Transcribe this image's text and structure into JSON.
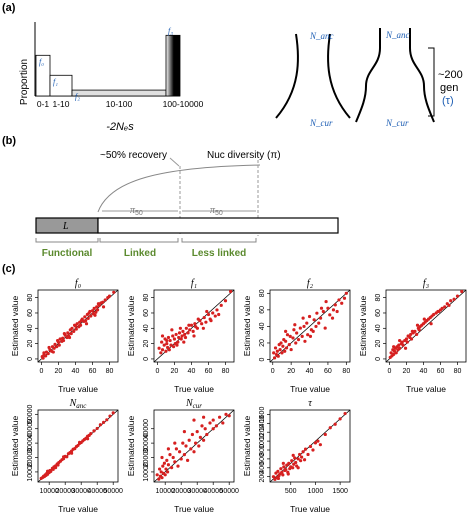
{
  "panel_a": {
    "label": "(a)",
    "ylabel": "Proportion",
    "xlabel": "-2Nₑs",
    "categories": [
      "0-1",
      "1-10",
      "10-100",
      "100-10000"
    ],
    "bar_labels": [
      "f₀",
      "f₁",
      "f₂",
      "f₃"
    ],
    "bar_values": [
      0.55,
      0.28,
      0.08,
      0.82
    ],
    "demography": {
      "n_anc": "N_anc",
      "n_cur": "N_cur",
      "gen_label": "~200",
      "gen_word": "gen",
      "tau": "(τ)"
    }
  },
  "panel_b": {
    "label": "(b)",
    "recovery": "~50% recovery",
    "nuc_diversity": "Nuc diversity (π)",
    "pi_50": "π",
    "pi_50_sub": "50",
    "element": "L",
    "regions": [
      "Functional",
      "Linked",
      "Less linked"
    ]
  },
  "panel_c": {
    "label": "(c)",
    "xlabel": "True value",
    "ylabel": "Estimated value"
  },
  "chart_data": [
    {
      "type": "scatter",
      "title": "f₀",
      "xlabel": "True value",
      "ylabel": "Estimated value",
      "xlim": [
        -4,
        90
      ],
      "ylim": [
        -4,
        90
      ],
      "xticks": [
        0,
        20,
        40,
        60,
        80
      ],
      "yticks": [
        0,
        20,
        40,
        60,
        80
      ],
      "color": "#d62020",
      "identity_line": true,
      "x": [
        1,
        2,
        3,
        5,
        6,
        8,
        10,
        12,
        13,
        15,
        16,
        18,
        20,
        21,
        22,
        24,
        25,
        26,
        28,
        30,
        31,
        32,
        34,
        35,
        36,
        38,
        40,
        41,
        42,
        44,
        45,
        46,
        48,
        50,
        51,
        52,
        54,
        55,
        56,
        58,
        60,
        61,
        62,
        64,
        65,
        66,
        68,
        70,
        72,
        75,
        78,
        80,
        85,
        3,
        9,
        14,
        19,
        27,
        33,
        39,
        47,
        53,
        57,
        63,
        67,
        73
      ],
      "y": [
        3,
        1,
        6,
        4,
        9,
        7,
        12,
        10,
        16,
        14,
        19,
        16,
        22,
        18,
        26,
        23,
        27,
        24,
        31,
        28,
        34,
        30,
        38,
        33,
        40,
        36,
        43,
        39,
        46,
        42,
        48,
        44,
        52,
        49,
        55,
        50,
        58,
        53,
        60,
        56,
        63,
        59,
        66,
        61,
        68,
        64,
        70,
        73,
        74,
        77,
        80,
        82,
        87,
        8,
        15,
        9,
        24,
        33,
        28,
        44,
        50,
        46,
        62,
        57,
        72,
        68
      ]
    },
    {
      "type": "scatter",
      "title": "f₁",
      "xlabel": "True value",
      "ylabel": "Estimated value",
      "xlim": [
        -4,
        90
      ],
      "ylim": [
        -4,
        90
      ],
      "xticks": [
        0,
        20,
        40,
        60,
        80
      ],
      "yticks": [
        0,
        20,
        40,
        60,
        80
      ],
      "color": "#d62020",
      "identity_line": true,
      "x": [
        2,
        4,
        5,
        6,
        8,
        9,
        10,
        11,
        12,
        13,
        14,
        15,
        16,
        18,
        19,
        20,
        21,
        22,
        24,
        25,
        26,
        28,
        29,
        30,
        32,
        33,
        34,
        36,
        38,
        40,
        42,
        44,
        45,
        47,
        50,
        52,
        55,
        57,
        60,
        62,
        65,
        68,
        70,
        72,
        75,
        80,
        86,
        6,
        11,
        17,
        23,
        27,
        31,
        37,
        43,
        48,
        54,
        58,
        63
      ],
      "y": [
        14,
        8,
        22,
        12,
        18,
        26,
        10,
        20,
        15,
        28,
        12,
        24,
        18,
        30,
        16,
        26,
        20,
        32,
        22,
        28,
        34,
        26,
        30,
        36,
        32,
        28,
        40,
        34,
        38,
        44,
        36,
        46,
        42,
        40,
        50,
        46,
        54,
        48,
        58,
        52,
        60,
        56,
        64,
        58,
        70,
        76,
        88,
        30,
        24,
        38,
        18,
        40,
        22,
        44,
        30,
        52,
        40,
        62,
        50
      ]
    },
    {
      "type": "scatter",
      "title": "f₂",
      "xlabel": "True value",
      "ylabel": "Estimated value",
      "xlim": [
        -3,
        84
      ],
      "ylim": [
        -3,
        84
      ],
      "xticks": [
        0,
        20,
        40,
        60,
        80
      ],
      "yticks": [
        0,
        20,
        40,
        60,
        80
      ],
      "color": "#d62020",
      "identity_line": true,
      "x": [
        1,
        2,
        3,
        4,
        5,
        6,
        7,
        8,
        9,
        10,
        11,
        12,
        13,
        14,
        15,
        16,
        18,
        19,
        20,
        22,
        23,
        25,
        26,
        28,
        30,
        32,
        34,
        35,
        37,
        38,
        40,
        42,
        44,
        45,
        47,
        48,
        50,
        52,
        55,
        57,
        60,
        62,
        65,
        68,
        70,
        72,
        75,
        78,
        80,
        14,
        24,
        33,
        41,
        53,
        58,
        66
      ],
      "y": [
        8,
        2,
        14,
        6,
        10,
        4,
        18,
        12,
        20,
        8,
        16,
        24,
        10,
        22,
        14,
        30,
        18,
        28,
        12,
        26,
        36,
        20,
        32,
        24,
        38,
        28,
        40,
        22,
        44,
        30,
        52,
        36,
        34,
        48,
        40,
        56,
        44,
        50,
        58,
        38,
        62,
        54,
        50,
        66,
        58,
        72,
        68,
        74,
        80,
        34,
        42,
        50,
        28,
        62,
        70,
        60
      ]
    },
    {
      "type": "scatter",
      "title": "f₃",
      "xlabel": "True value",
      "ylabel": "Estimated value",
      "xlim": [
        -4,
        90
      ],
      "ylim": [
        -4,
        90
      ],
      "xticks": [
        0,
        20,
        40,
        60,
        80
      ],
      "yticks": [
        0,
        20,
        40,
        60,
        80
      ],
      "color": "#d62020",
      "identity_line": true,
      "x": [
        1,
        2,
        3,
        4,
        5,
        6,
        7,
        8,
        9,
        10,
        11,
        12,
        14,
        15,
        16,
        18,
        20,
        21,
        22,
        24,
        25,
        26,
        28,
        30,
        32,
        34,
        35,
        36,
        38,
        40,
        42,
        44,
        46,
        48,
        50,
        52,
        55,
        58,
        60,
        62,
        65,
        68,
        70,
        72,
        76,
        80,
        85,
        5,
        12,
        19,
        27,
        33,
        41,
        49,
        57
      ],
      "y": [
        2,
        8,
        4,
        12,
        6,
        10,
        14,
        8,
        16,
        12,
        18,
        14,
        20,
        22,
        18,
        24,
        26,
        22,
        30,
        28,
        32,
        26,
        34,
        36,
        32,
        40,
        38,
        42,
        44,
        46,
        48,
        50,
        52,
        54,
        56,
        58,
        60,
        62,
        64,
        66,
        68,
        72,
        70,
        76,
        78,
        82,
        88,
        16,
        24,
        14,
        36,
        44,
        52,
        46,
        62
      ]
    },
    {
      "type": "scatter",
      "title": "N_anc",
      "xlabel": "True value",
      "ylabel": "Estimated value",
      "xlim": [
        3000,
        53000
      ],
      "ylim": [
        3000,
        53000
      ],
      "xticks": [
        10000,
        20000,
        30000,
        40000,
        50000
      ],
      "yticks": [
        10000,
        20000,
        30000,
        40000,
        50000
      ],
      "color": "#d62020",
      "identity_line": true,
      "x": [
        5000,
        6000,
        6500,
        7000,
        7500,
        8000,
        8500,
        9000,
        9500,
        10000,
        10500,
        11000,
        12000,
        12500,
        13000,
        14000,
        15000,
        15500,
        16000,
        17000,
        18000,
        19000,
        20000,
        21000,
        22000,
        23000,
        24000,
        25000,
        26000,
        27000,
        28000,
        29000,
        30000,
        31000,
        32000,
        33000,
        34000,
        35000,
        36000,
        38000,
        40000,
        42000,
        44000,
        46000,
        48000,
        50000,
        9000,
        14000,
        19000,
        24000,
        29000,
        34000
      ],
      "y": [
        5500,
        6200,
        7000,
        6800,
        8000,
        7600,
        9000,
        8400,
        10000,
        9600,
        11000,
        10400,
        12500,
        11800,
        13500,
        14200,
        15500,
        14800,
        16500,
        17400,
        18500,
        19200,
        20800,
        20500,
        22600,
        23400,
        24500,
        25800,
        26200,
        27600,
        28400,
        29800,
        30400,
        31600,
        32500,
        33400,
        34800,
        35400,
        36600,
        38500,
        40200,
        42800,
        44400,
        46200,
        48800,
        51000,
        10500,
        13000,
        20500,
        23000,
        30500,
        33000
      ]
    },
    {
      "type": "scatter",
      "title": "N_cur",
      "xlabel": "True value",
      "ylabel": "Estimated value",
      "xlim": [
        3000,
        53000
      ],
      "ylim": [
        3000,
        53000
      ],
      "xticks": [
        10000,
        20000,
        30000,
        40000,
        50000
      ],
      "yticks": [
        10000,
        20000,
        30000,
        40000
      ],
      "color": "#d62020",
      "identity_line": true,
      "x": [
        5000,
        6000,
        6500,
        7000,
        7500,
        8000,
        8500,
        9000,
        9500,
        10000,
        10500,
        11000,
        11500,
        12000,
        13000,
        14000,
        15000,
        16000,
        17000,
        18000,
        19000,
        20000,
        21000,
        22000,
        23000,
        24000,
        25000,
        26000,
        27000,
        28000,
        29000,
        30000,
        31000,
        32000,
        33000,
        34000,
        35000,
        36000,
        38000,
        40000,
        42000,
        44000,
        46000,
        48000,
        50000,
        8000,
        12000,
        16000,
        22000,
        28000,
        34000,
        40000
      ],
      "y": [
        8000,
        5000,
        12000,
        7000,
        10000,
        6000,
        14000,
        9000,
        16000,
        8000,
        12000,
        18000,
        10000,
        15000,
        22000,
        13000,
        20000,
        17000,
        26000,
        14000,
        24000,
        19000,
        30000,
        22000,
        28000,
        18000,
        32000,
        26000,
        36000,
        24000,
        30000,
        38000,
        28000,
        34000,
        42000,
        32000,
        40000,
        36000,
        44000,
        46000,
        42000,
        48000,
        44000,
        50000,
        49000,
        20000,
        26000,
        30000,
        38000,
        46000,
        48000,
        40000
      ]
    },
    {
      "type": "scatter",
      "title": "τ",
      "xlabel": "True value",
      "ylabel": "Estimated value",
      "xlim": [
        80,
        1700
      ],
      "ylim": [
        80,
        1700
      ],
      "xticks": [
        500,
        1000,
        1500
      ],
      "yticks": [
        200,
        400,
        600,
        800,
        1000,
        1200,
        1400,
        1600
      ],
      "color": "#d62020",
      "identity_line": true,
      "x": [
        150,
        180,
        200,
        220,
        240,
        260,
        280,
        300,
        320,
        340,
        360,
        380,
        400,
        420,
        440,
        460,
        480,
        500,
        520,
        540,
        560,
        580,
        600,
        620,
        650,
        680,
        700,
        720,
        750,
        780,
        800,
        850,
        900,
        950,
        1000,
        1050,
        1100,
        1200,
        1300,
        1400,
        1500,
        1600,
        250,
        350,
        450,
        550,
        650
      ],
      "y": [
        200,
        140,
        280,
        180,
        320,
        220,
        260,
        380,
        300,
        240,
        420,
        340,
        360,
        460,
        300,
        500,
        380,
        420,
        560,
        400,
        480,
        620,
        520,
        440,
        600,
        700,
        560,
        640,
        760,
        580,
        820,
        700,
        880,
        800,
        960,
        1000,
        920,
        1150,
        1300,
        1380,
        1500,
        1620,
        160,
        500,
        260,
        680,
        400
      ]
    }
  ]
}
